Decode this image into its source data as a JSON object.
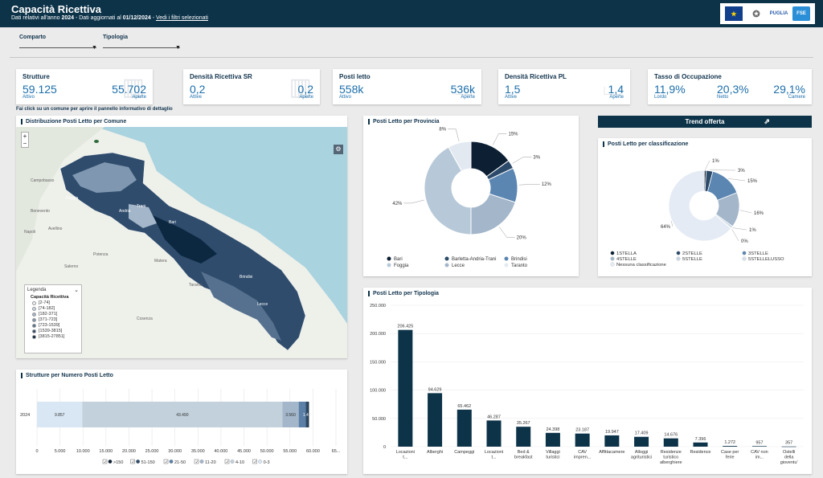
{
  "header": {
    "title": "Capacità Ricettiva",
    "sub_prefix": "Dati relativi all'anno ",
    "sub_year": "2024",
    "sub_mid": " - Dati aggiornati al ",
    "sub_date": "01/12/2024",
    "sub_sep": " - ",
    "sub_link": "Vedi i filtri selezionati",
    "logos": [
      "EU",
      "IT",
      "PUGLIA",
      "FSE"
    ]
  },
  "filters": {
    "comparto": "Comparto",
    "tipologia": "Tipologia"
  },
  "kpis": [
    {
      "title": "Strutture",
      "v1": "59.125",
      "l1": "Attivo",
      "v2": "55.702",
      "l2": "Aperte",
      "icon": "building-icon"
    },
    {
      "title": "Densità Ricettiva SR",
      "v1": "0,2",
      "l1": "Attive",
      "v2": "0,2",
      "l2": "Aperte",
      "icon": "building-icon"
    },
    {
      "title": "Posti letto",
      "v1": "558k",
      "l1": "Attivo",
      "v2": "536k",
      "l2": "Aperte",
      "icon": "bed-icon"
    },
    {
      "title": "Densità Ricettiva PL",
      "v1": "1,5",
      "l1": "Attive",
      "v2": "1,4",
      "l2": "Aperte",
      "icon": "bed-icon"
    },
    {
      "title": "Tasso di Occupazione",
      "v1": "11,9%",
      "l1": "Lordo",
      "v2": "20,3%",
      "l2": "Netto",
      "v3": "29,1%",
      "l3": "Camere",
      "icon": "none"
    }
  ],
  "hint": "Fai click su un comune per aprire il pannello informativo di dettaglio",
  "map": {
    "title": "Distribuzione Posti Letto per Comune",
    "legend_header": "Legenda",
    "legend_title": "Capacità Ricettiva",
    "legend_items": [
      "[2-74]",
      "[74-182]",
      "[182-371]",
      "[371-723]",
      "[723-1539]",
      "[1539-3815]",
      "[3815-27851]"
    ],
    "legend_colors": [
      "#eef2f6",
      "#c9d6e3",
      "#a3b6ca",
      "#7f97b1",
      "#56718f",
      "#2f4c6c",
      "#0c2740"
    ],
    "place_labels": [
      "Campobasso",
      "Foggia",
      "Benevento",
      "Avellino",
      "Napoli",
      "Potenza",
      "Salerno",
      "Bari",
      "Taranto",
      "Brindisi",
      "Lecce",
      "Matera",
      "Cosenza",
      "Trani",
      "Andria"
    ],
    "zoom_in": "+",
    "zoom_out": "−"
  },
  "trend": {
    "label": "Trend offerta",
    "icon": "external-link-icon"
  },
  "provincia": {
    "title": "Posti Letto per Provincia"
  },
  "classificazione": {
    "title": "Posti Letto per classificazione"
  },
  "strutture": {
    "title": "Strutture per Numero Posti Letto"
  },
  "tipologia_panel": {
    "title": "Posti Letto per Tipologia"
  },
  "chart_data": [
    {
      "type": "pie",
      "title": "Posti Letto per Provincia",
      "labels": [
        "Bari",
        "Barletta-Andria-Trani",
        "Brindisi",
        "Foggia",
        "Lecce",
        "Taranto"
      ],
      "values": [
        15,
        3,
        12,
        42,
        20,
        8
      ],
      "value_labels": [
        "15%",
        "3%",
        "12%",
        "42%",
        "20%",
        "8%"
      ],
      "colors": [
        "#0c1f33",
        "#2c4a6a",
        "#5b86b2",
        "#b7c8d8",
        "#a3b6ca",
        "#e2e9f1"
      ],
      "chart_order": [
        0,
        1,
        2,
        4,
        3,
        5
      ]
    },
    {
      "type": "pie",
      "title": "Posti Letto per classificazione",
      "labels": [
        "1STELLA",
        "2STELLE",
        "3STELLE",
        "4STELLE",
        "5STELLE",
        "5STELLELUSSO",
        "Nessuna classificazione"
      ],
      "values": [
        1,
        3,
        15,
        16,
        1,
        0,
        64
      ],
      "value_labels": [
        "1%",
        "3%",
        "15%",
        "16%",
        "1%",
        "0%",
        "64%"
      ],
      "colors": [
        "#0c1f33",
        "#2c4a6a",
        "#5b86b2",
        "#a3b6ca",
        "#c9d6e3",
        "#d7e1ec",
        "#e4ebf4"
      ]
    },
    {
      "type": "bar",
      "title": "Strutture per Numero Posti Letto",
      "orientation": "horizontal",
      "stacked": true,
      "categories": [
        "2024"
      ],
      "series": [
        {
          "name": "0-3",
          "values": [
            9857
          ],
          "label": "9.857",
          "color": "#d9e7f4"
        },
        {
          "name": "4-10",
          "values": [
            43490
          ],
          "label": "43.490",
          "color": "#c3d1dc"
        },
        {
          "name": "11-20",
          "values": [
            3560
          ],
          "label": "3.560",
          "color": "#a3b6ca"
        },
        {
          "name": "21-50",
          "values": [
            1500
          ],
          "label": "",
          "color": "#5b7fa6"
        },
        {
          "name": "51-150",
          "values": [
            500
          ],
          "label": "",
          "color": "#2c4a6a"
        },
        {
          "name": ">150",
          "values": [
            218
          ],
          "label": "",
          "color": "#0c1f33"
        }
      ],
      "overlap_label": "1.4",
      "xlim": [
        0,
        65000
      ],
      "xticks": [
        "0",
        "5.000",
        "10.000",
        "15.000",
        "20.000",
        "25.000",
        "30.000",
        "35.000",
        "40.000",
        "45.000",
        "50.000",
        "55.000",
        "60.000",
        "65..."
      ],
      "legend_order": [
        ">150",
        "51-150",
        "21-50",
        "11-20",
        "4-10",
        "0-3"
      ]
    },
    {
      "type": "bar",
      "title": "Posti Letto per Tipologia",
      "categories": [
        "Locazioni t...",
        "Alberghi",
        "Campeggi",
        "Locazioni t...",
        "Bed & breakfast",
        "Villaggi turistici",
        "CAV impren...",
        "Affittacamere",
        "Alloggi agrituristici",
        "Residenze turistico alberghiere",
        "Residence",
        "Case per ferie",
        "CAV non im...",
        "Ostelli della gioventu'"
      ],
      "values": [
        206425,
        94629,
        65462,
        46287,
        35267,
        24398,
        23187,
        19947,
        17409,
        14676,
        7396,
        1272,
        957,
        357
      ],
      "value_labels": [
        "206.425",
        "94.629",
        "65.462",
        "46.287",
        "35.267",
        "24.398",
        "23.187",
        "19.947",
        "17.409",
        "14.676",
        "7.396",
        "1.272",
        "957",
        "357"
      ],
      "ylim": [
        0,
        250000
      ],
      "yticks": [
        "250.000",
        "200.000",
        "150.000",
        "100.000",
        "50.000",
        "0"
      ],
      "color": "#0d3349"
    }
  ]
}
